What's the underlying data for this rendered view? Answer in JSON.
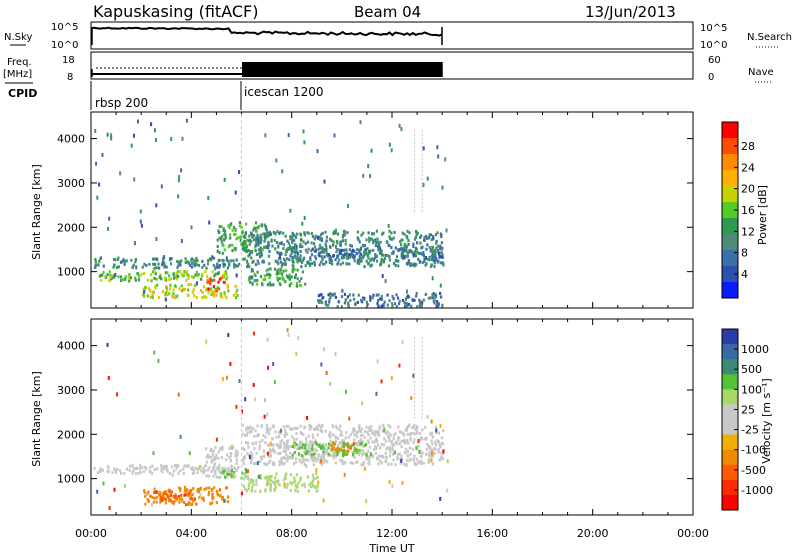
{
  "header": {
    "station": "Kapuskasing (fitACF)",
    "beam": "Beam 04",
    "date": "13/Jun/2013"
  },
  "nsky_panel": {
    "left_label": "N.Sky",
    "left_ticks": [
      "10^5",
      "10^0"
    ],
    "right_ticks": [
      "10^5",
      "10^0"
    ],
    "right_label": "N.Search"
  },
  "freq_panel": {
    "left_label_line1": "Freq.",
    "left_label_line2": "[MHz]",
    "left_ticks": [
      "18",
      "8"
    ],
    "right_ticks": [
      "60",
      "0"
    ],
    "right_label": "Nave"
  },
  "cpid": {
    "label": "CPID",
    "segments": [
      {
        "name": "rbsp 200",
        "start_hour": 0
      },
      {
        "name": "icescan 1200",
        "start_hour": 6
      }
    ]
  },
  "power_colorbar": {
    "label": "Power [dB]",
    "ticks": [
      "28",
      "24",
      "20",
      "16",
      "12",
      "8",
      "4"
    ],
    "colors": [
      "#ff0000",
      "#ff4a00",
      "#ff8c00",
      "#ffb000",
      "#c8d200",
      "#55cc22",
      "#2e9a4e",
      "#4e8c78",
      "#3c6eaa",
      "#2e4fb0",
      "#0a1aff"
    ]
  },
  "velocity_colorbar": {
    "label": "Velocity [m s⁻¹]",
    "ticks": [
      "1000",
      "500",
      "100",
      "25",
      "-25",
      "-100",
      "-500",
      "-1000"
    ],
    "colors": [
      "#2a3ca8",
      "#3a6aa6",
      "#3a8a78",
      "#55c038",
      "#a8d868",
      "#c8c8c8",
      "#c8c8c8",
      "#f0b000",
      "#f08a00",
      "#ff5a00",
      "#ff2a00",
      "#ff0000"
    ]
  },
  "chart_data": [
    {
      "type": "heatmap",
      "title": "Power",
      "xlabel": "Time UT",
      "ylabel": "Slant Range [km]",
      "xlim": [
        0,
        24
      ],
      "ylim": [
        180,
        4600
      ],
      "x_ticks": [
        "00:00",
        "04:00",
        "08:00",
        "12:00",
        "16:00",
        "20:00",
        "00:00"
      ],
      "y_ticks": [
        1000,
        2000,
        3000,
        4000
      ],
      "regions": [
        {
          "t0": 0.1,
          "t1": 5.9,
          "r0": 1060,
          "r1": 1300,
          "level": 3
        },
        {
          "t0": 0.3,
          "t1": 5.5,
          "r0": 780,
          "r1": 1000,
          "level": 5
        },
        {
          "t0": 2.0,
          "t1": 5.8,
          "r0": 400,
          "r1": 700,
          "level": 6
        },
        {
          "t0": 4.5,
          "t1": 5.3,
          "r0": 550,
          "r1": 850,
          "level": 9
        },
        {
          "t0": 5.0,
          "t1": 7.0,
          "r0": 1400,
          "r1": 2100,
          "level": 4
        },
        {
          "t0": 6.0,
          "t1": 14.0,
          "r0": 1100,
          "r1": 1900,
          "level": 3
        },
        {
          "t0": 6.2,
          "t1": 8.5,
          "r0": 650,
          "r1": 1050,
          "level": 4
        },
        {
          "t0": 8.5,
          "t1": 14.0,
          "r0": 1300,
          "r1": 1500,
          "level": 2
        },
        {
          "t0": 9.0,
          "t1": 14.0,
          "r0": 200,
          "r1": 500,
          "level": 2
        }
      ]
    },
    {
      "type": "heatmap",
      "title": "Velocity",
      "xlabel": "Time UT",
      "ylabel": "Slant Range [km]",
      "xlim": [
        0,
        24
      ],
      "ylim": [
        180,
        4600
      ],
      "x_ticks": [
        "00:00",
        "04:00",
        "08:00",
        "12:00",
        "16:00",
        "20:00",
        "00:00"
      ],
      "y_ticks": [
        1000,
        2000,
        3000,
        4000
      ],
      "regions": [
        {
          "t0": 0.1,
          "t1": 5.9,
          "r0": 1100,
          "r1": 1300,
          "color_index": 5
        },
        {
          "t0": 2.0,
          "t1": 5.5,
          "r0": 400,
          "r1": 800,
          "color_index": 8
        },
        {
          "t0": 2.5,
          "t1": 4.0,
          "r0": 500,
          "r1": 700,
          "color_index": 9
        },
        {
          "t0": 4.5,
          "t1": 5.8,
          "r0": 1000,
          "r1": 1700,
          "color_index": 5
        },
        {
          "t0": 5.2,
          "t1": 6.2,
          "r0": 1000,
          "r1": 1200,
          "color_index": 3
        },
        {
          "t0": 6.0,
          "t1": 9.0,
          "r0": 700,
          "r1": 1100,
          "color_index": 4
        },
        {
          "t0": 6.0,
          "t1": 14.0,
          "r0": 1300,
          "r1": 2200,
          "color_index": 5
        },
        {
          "t0": 8.0,
          "t1": 11.0,
          "r0": 1500,
          "r1": 1800,
          "color_index": 3
        },
        {
          "t0": 9.5,
          "t1": 10.5,
          "r0": 1600,
          "r1": 1800,
          "color_index": 8
        }
      ]
    }
  ]
}
